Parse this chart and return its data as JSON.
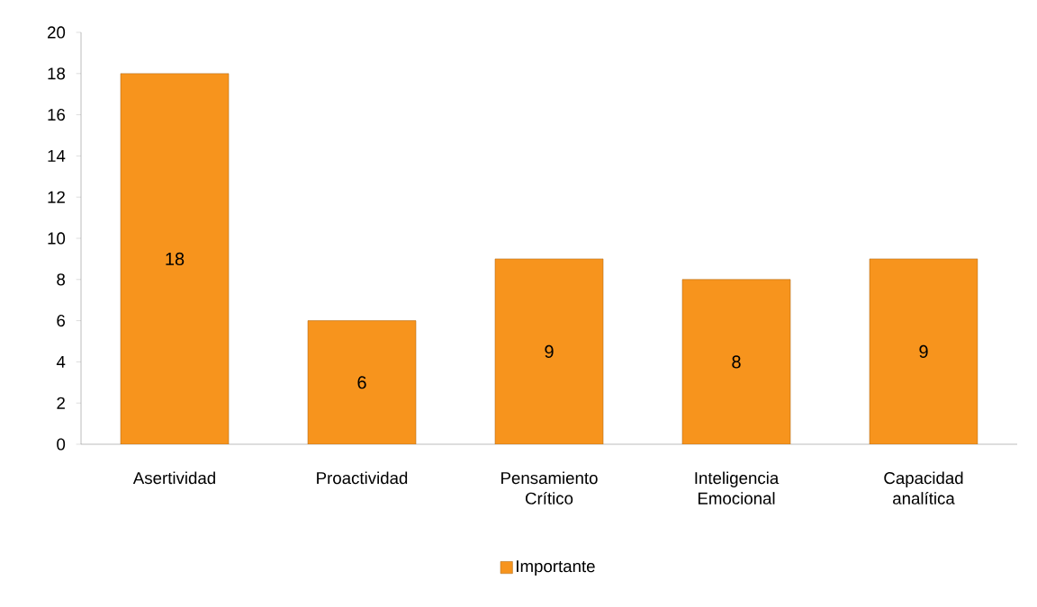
{
  "chart_data": {
    "type": "bar",
    "categories": [
      "Asertividad",
      "Proactividad",
      "Pensamiento Crítico",
      "Inteligencia Emocional",
      "Capacidad analítica"
    ],
    "series": [
      {
        "name": "Importante",
        "color": "#f7941d",
        "values": [
          18,
          6,
          9,
          8,
          9
        ]
      }
    ],
    "ylim": [
      0,
      20
    ],
    "yticks": [
      0,
      2,
      4,
      6,
      8,
      10,
      12,
      14,
      16,
      18,
      20
    ],
    "data_labels": true,
    "grid": false,
    "legend": "bottom"
  }
}
